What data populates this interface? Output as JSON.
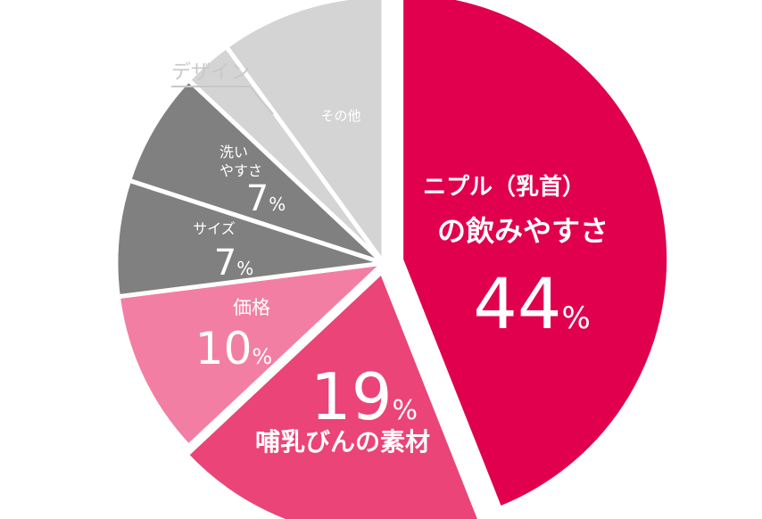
{
  "chart_data": {
    "type": "pie",
    "title": "",
    "slices": [
      {
        "label": "ニプル（乳首）の飲みやすさ",
        "label_lines": [
          "ニプル（乳首）",
          "の飲みやすさ"
        ],
        "value": 44,
        "value_text": "44",
        "unit": "%",
        "color": "#e0004d"
      },
      {
        "label": "哺乳びんの素材",
        "label_lines": [
          "哺乳びんの素材"
        ],
        "value": 19,
        "value_text": "19",
        "unit": "%",
        "color": "#ea4478"
      },
      {
        "label": "価格",
        "label_lines": [
          "価格"
        ],
        "value": 10,
        "value_text": "10",
        "unit": "%",
        "color": "#f27fa3"
      },
      {
        "label": "サイズ",
        "label_lines": [
          "サイズ"
        ],
        "value": 7,
        "value_text": "7",
        "unit": "%",
        "color": "#808080"
      },
      {
        "label": "洗いやすさ",
        "label_lines": [
          "洗い",
          "やすさ"
        ],
        "value": 7,
        "value_text": "7",
        "unit": "%",
        "color": "#808080"
      },
      {
        "label": "デザイン",
        "label_lines": [
          "デザイン"
        ],
        "value": 3,
        "value_text": "",
        "unit": "",
        "color": "#d4d4d4"
      },
      {
        "label": "その他",
        "label_lines": [
          "その他"
        ],
        "value": 10,
        "value_text": "",
        "unit": "",
        "color": "#d4d4d4"
      }
    ]
  }
}
